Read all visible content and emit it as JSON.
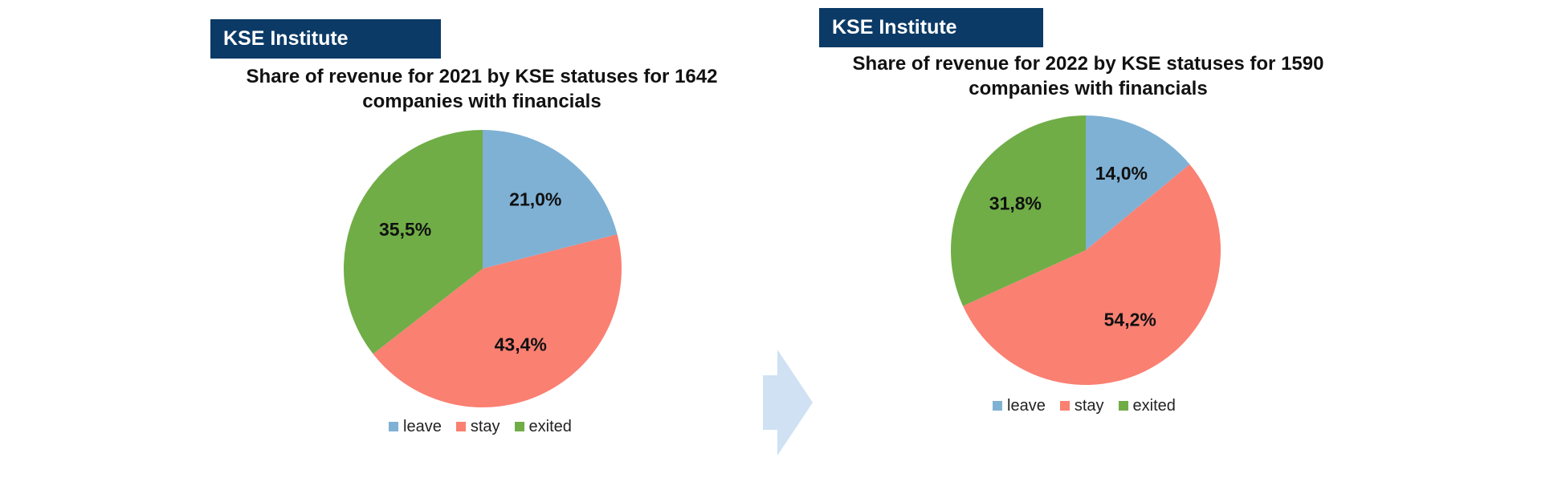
{
  "colors": {
    "leave": "#7fb1d5",
    "stay": "#fa8072",
    "exited": "#70ad47",
    "brand_bg": "#0b3a66",
    "arrow": "#cfe1f3"
  },
  "left": {
    "brand": "KSE Institute",
    "chart_title": "Share of revenue for 2021 by KSE statuses for 1642 companies with financials"
  },
  "right": {
    "brand": "KSE Institute",
    "chart_title": "Share of revenue for 2022 by KSE statuses for 1590 companies with financials"
  },
  "legend": {
    "leave": "leave",
    "stay": "stay",
    "exited": "exited"
  },
  "chart_data": [
    {
      "type": "pie",
      "title": "Share of revenue for 2021 by KSE statuses for 1642 companies with financials",
      "categories": [
        "leave",
        "stay",
        "exited"
      ],
      "values": [
        21.0,
        43.4,
        35.5
      ],
      "labels": [
        "21,0%",
        "43,4%",
        "35,5%"
      ],
      "legend_position": "bottom"
    },
    {
      "type": "pie",
      "title": "Share of revenue for 2022 by KSE statuses for 1590 companies with financials",
      "categories": [
        "leave",
        "stay",
        "exited"
      ],
      "values": [
        14.0,
        54.2,
        31.8
      ],
      "labels": [
        "14,0%",
        "54,2%",
        "31,8%"
      ],
      "legend_position": "bottom"
    }
  ]
}
